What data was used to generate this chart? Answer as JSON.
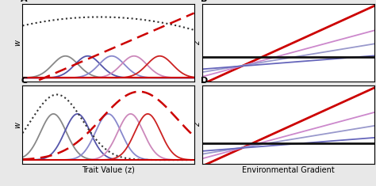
{
  "panel_labels": [
    "A",
    "B",
    "C",
    "D"
  ],
  "xlabel_left": "Trait Value (z)",
  "xlabel_right": "Environmental Gradient",
  "ylabel_left": "w",
  "ylabel_right": "z",
  "bg_color": "#e8e8e8",
  "panel_bg": "#ffffff",
  "gaussian_centers_A": [
    0.25,
    0.38,
    0.52,
    0.65,
    0.8
  ],
  "gaussian_colors_A": [
    "#888888",
    "#5555aa",
    "#8888cc",
    "#cc88bb",
    "#cc2222"
  ],
  "gaussian_sigma_A": 0.075,
  "gaussian_amp_A": 0.28,
  "gaussian_centers_C": [
    0.18,
    0.32,
    0.5,
    0.63,
    0.73
  ],
  "gaussian_colors_C": [
    "#888888",
    "#5555aa",
    "#8888cc",
    "#cc88bb",
    "#cc2222"
  ],
  "gaussian_sigma_C": 0.075,
  "gaussian_amp_C": 0.62,
  "lines_B": [
    {
      "slope": 1.05,
      "intercept": -0.08,
      "color": "#cc0000",
      "lw": 2.0
    },
    {
      "slope": 0.62,
      "intercept": 0.02,
      "color": "#cc88cc",
      "lw": 1.3
    },
    {
      "slope": 0.38,
      "intercept": 0.08,
      "color": "#9999cc",
      "lw": 1.3
    },
    {
      "slope": 0.18,
      "intercept": 0.12,
      "color": "#6666bb",
      "lw": 1.3
    },
    {
      "slope": 0.0,
      "intercept": 0.28,
      "color": "#111111",
      "lw": 2.0
    }
  ],
  "lines_D": [
    {
      "slope": 1.05,
      "intercept": -0.08,
      "color": "#cc0000",
      "lw": 2.0
    },
    {
      "slope": 0.62,
      "intercept": 0.02,
      "color": "#cc88cc",
      "lw": 1.3
    },
    {
      "slope": 0.38,
      "intercept": 0.08,
      "color": "#9999cc",
      "lw": 1.3
    },
    {
      "slope": 0.18,
      "intercept": 0.12,
      "color": "#6666bb",
      "lw": 1.3
    },
    {
      "slope": 0.0,
      "intercept": 0.22,
      "color": "#111111",
      "lw": 2.0
    }
  ]
}
